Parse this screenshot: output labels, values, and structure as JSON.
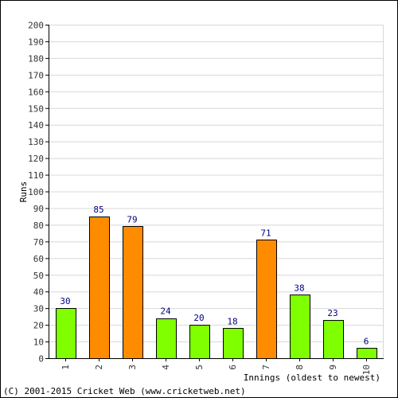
{
  "chart_data": {
    "type": "bar",
    "categories": [
      "1",
      "2",
      "3",
      "4",
      "5",
      "6",
      "7",
      "8",
      "9",
      "10"
    ],
    "values": [
      30,
      85,
      79,
      24,
      20,
      18,
      71,
      38,
      23,
      6
    ],
    "title": "",
    "xlabel": "Innings (oldest to newest)",
    "ylabel": "Runs",
    "ylim": [
      0,
      200
    ],
    "ytick_step": 10,
    "grid": true,
    "colors": {
      "below_50": "#80ff00",
      "fifty_plus": "#ff8c00",
      "bar_outline": "#000000",
      "grid": "#d8d8d8",
      "data_label": "#000080"
    }
  },
  "footer": {
    "copyright": "(C) 2001-2015 Cricket Web (www.cricketweb.net)"
  }
}
